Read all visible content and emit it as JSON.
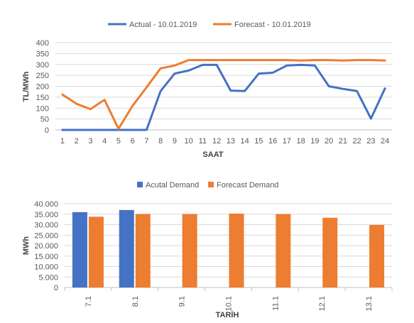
{
  "colors": {
    "actual": "#4472C4",
    "forecast": "#ED7D31",
    "grid": "#D9D9D9",
    "axis": "#BFBFBF",
    "text": "#595959",
    "axis_title": "#404040"
  },
  "chart_data": [
    {
      "type": "line",
      "x": [
        1,
        2,
        3,
        4,
        5,
        6,
        7,
        8,
        9,
        10,
        11,
        12,
        13,
        14,
        15,
        16,
        17,
        18,
        19,
        20,
        21,
        22,
        23,
        24
      ],
      "series": [
        {
          "name": "Actual - 10.01.2019",
          "values": [
            0,
            0,
            0,
            0,
            0,
            0,
            0,
            178,
            258,
            272,
            298,
            298,
            180,
            178,
            258,
            262,
            295,
            298,
            295,
            200,
            188,
            178,
            52,
            190
          ]
        },
        {
          "name": "Forecast - 10.01.2019",
          "values": [
            162,
            120,
            95,
            138,
            5,
            110,
            195,
            282,
            295,
            320,
            320,
            320,
            320,
            320,
            320,
            320,
            320,
            318,
            320,
            320,
            318,
            320,
            320,
            318
          ]
        }
      ],
      "ylim": [
        0,
        400
      ],
      "yticks": [
        "0",
        "50",
        "100",
        "150",
        "200",
        "250",
        "300",
        "350",
        "400"
      ],
      "xlabel": "SAAT",
      "ylabel": "TL/MWh",
      "legend": "top",
      "grid": true
    },
    {
      "type": "bar",
      "categories": [
        "7.1",
        "8.1",
        "9.1",
        "10.1",
        "11.1",
        "12.1",
        "13.1"
      ],
      "series": [
        {
          "name": "Acutal Demand",
          "values": [
            36000,
            37000,
            null,
            null,
            null,
            null,
            null
          ]
        },
        {
          "name": "Forecast Demand",
          "values": [
            33800,
            35100,
            35100,
            35300,
            35100,
            33300,
            29900
          ]
        }
      ],
      "ylim": [
        0,
        40000
      ],
      "yticks": [
        "0",
        "5.000",
        "10.000",
        "15.000",
        "20.000",
        "25.000",
        "30.000",
        "35.000",
        "40.000"
      ],
      "xlabel": "TARİH",
      "ylabel": "MWh",
      "legend": "top",
      "grid": true
    }
  ]
}
